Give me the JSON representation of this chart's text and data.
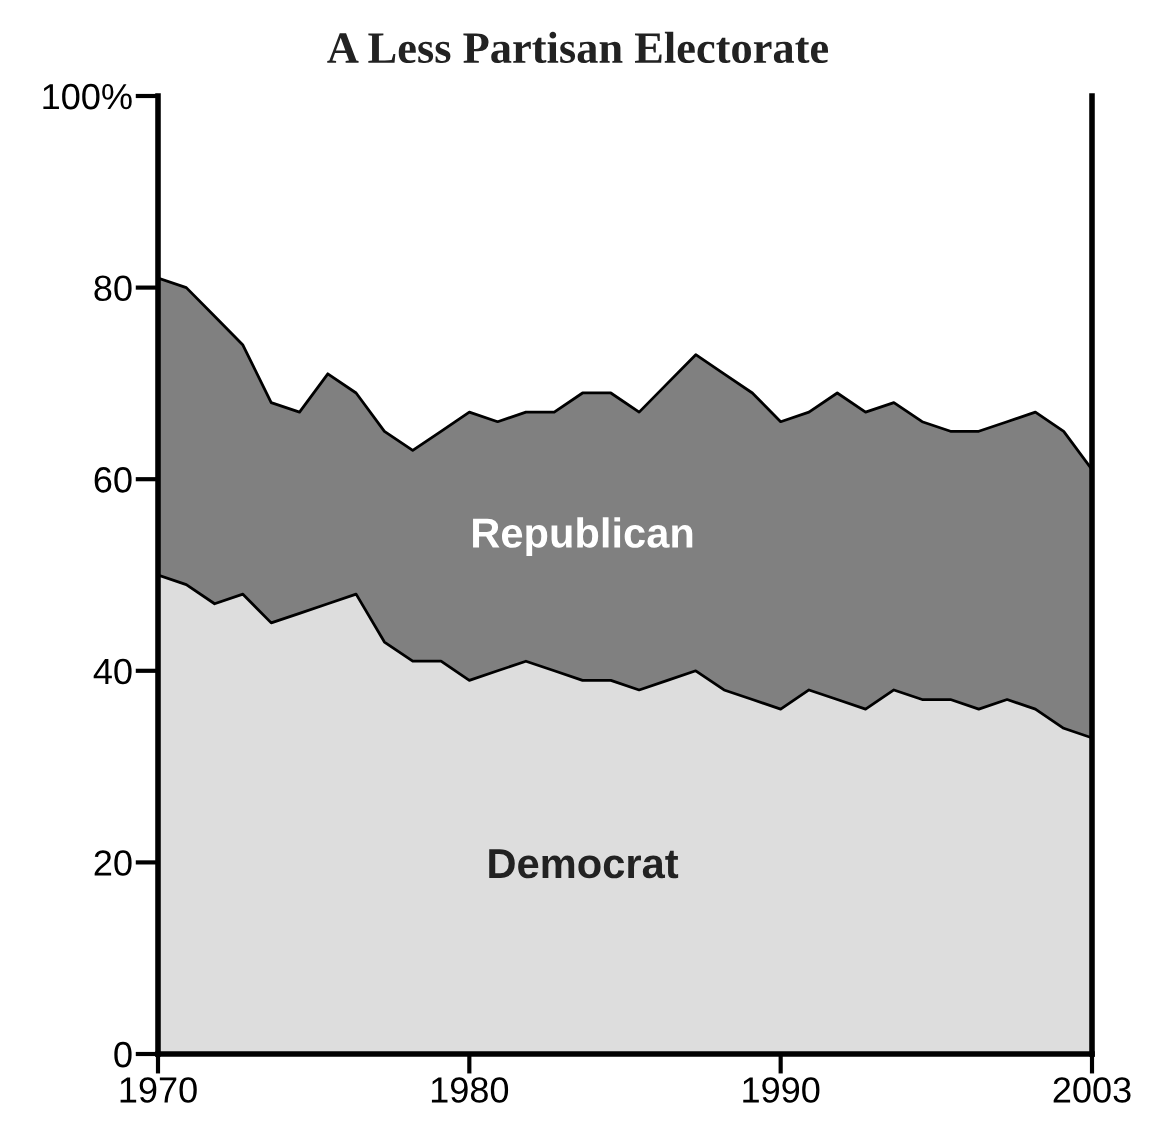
{
  "chart_data": {
    "type": "area",
    "title": "A Less Partisan Electorate",
    "stacked": true,
    "categories": [
      "1970",
      null,
      null,
      null,
      null,
      null,
      null,
      null,
      null,
      null,
      null,
      "1980",
      null,
      null,
      null,
      null,
      null,
      null,
      null,
      null,
      null,
      null,
      "1990",
      null,
      null,
      null,
      null,
      null,
      null,
      null,
      null,
      null,
      null,
      "2003"
    ],
    "series": [
      {
        "name": "Democrat",
        "color": "#dddddd",
        "values": [
          50,
          49,
          47,
          48,
          45,
          46,
          47,
          48,
          43,
          41,
          41,
          39,
          40,
          41,
          40,
          39,
          39,
          38,
          39,
          40,
          38,
          37,
          36,
          38,
          37,
          36,
          38,
          37,
          37,
          36,
          37,
          36,
          34,
          33
        ]
      },
      {
        "name": "Republican",
        "color": "#808080",
        "values": [
          31,
          31,
          30,
          26,
          23,
          21,
          24,
          21,
          22,
          22,
          24,
          28,
          26,
          26,
          27,
          30,
          30,
          29,
          31,
          33,
          33,
          32,
          30,
          29,
          32,
          31,
          30,
          29,
          28,
          29,
          29,
          31,
          31,
          28
        ]
      }
    ],
    "ylim": [
      0,
      100
    ],
    "yticks": [
      0,
      20,
      40,
      60,
      80,
      {
        "value": 100,
        "label": "100%"
      }
    ],
    "grid": false,
    "legend": false
  }
}
